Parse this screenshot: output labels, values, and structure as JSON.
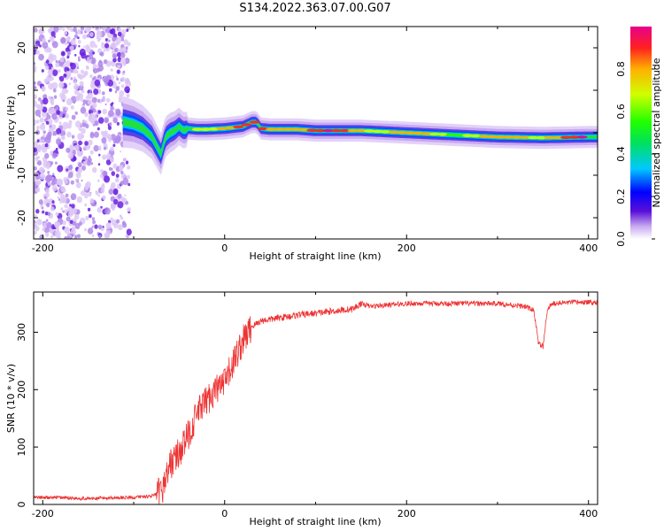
{
  "figure": {
    "title": "S134.2022.363.07.00.G07"
  },
  "chart_data": [
    {
      "type": "heatmap",
      "xlabel": "Height of straight line (km)",
      "ylabel": "Frequency (Hz)",
      "xlim": [
        -210,
        410
      ],
      "ylim": [
        -25,
        25
      ],
      "xticks": [
        "-200",
        "0",
        "200",
        "400"
      ],
      "yticks": [
        "-20",
        "-10",
        "0",
        "10",
        "20"
      ],
      "grid": false,
      "colorbar": {
        "label": "Normalized spectral amplitude",
        "range": [
          0,
          1
        ],
        "ticks": [
          "0.0",
          "0.2",
          "0.4",
          "0.6",
          "0.8"
        ],
        "colors": [
          "#ffffff",
          "#c8a8f0",
          "#5a10d8",
          "#0000ff",
          "#00c8ff",
          "#00e060",
          "#20ff00",
          "#d0ff00",
          "#ffb000",
          "#ff2020",
          "#e8008c"
        ]
      },
      "noise_region_x": [
        -210,
        -105
      ],
      "signal_trace": {
        "x": [
          -110,
          -100,
          -90,
          -80,
          -75,
          -70,
          -65,
          -60,
          -55,
          -50,
          -45,
          -40,
          -30,
          -20,
          0,
          20,
          30,
          35,
          40,
          50,
          60,
          80,
          100,
          150,
          200,
          250,
          300,
          350,
          400
        ],
        "frequency_hz": [
          2.5,
          2.0,
          1.0,
          -1.0,
          -3.0,
          -5.0,
          -1.0,
          0.0,
          0.5,
          1.5,
          0.5,
          1.0,
          0.8,
          0.8,
          1.0,
          1.5,
          2.5,
          2.5,
          1.0,
          0.8,
          0.8,
          0.8,
          0.5,
          0.5,
          0.0,
          -0.5,
          -1.0,
          -1.2,
          -1.0
        ]
      }
    },
    {
      "type": "line",
      "xlabel": "Height of straight line (km)",
      "ylabel": "SNR (10 * v/v)",
      "xlim": [
        -210,
        410
      ],
      "ylim": [
        0,
        370
      ],
      "xticks": [
        "-200",
        "0",
        "200",
        "400"
      ],
      "yticks": [
        "0",
        "100",
        "200",
        "300"
      ],
      "grid": false,
      "series": [
        {
          "color": "#ee3333",
          "x": [
            -210,
            -180,
            -150,
            -120,
            -100,
            -80,
            -70,
            -60,
            -50,
            -40,
            -30,
            -20,
            -10,
            0,
            10,
            20,
            30,
            40,
            60,
            80,
            100,
            120,
            140,
            150,
            160,
            200,
            250,
            300,
            330,
            340,
            345,
            350,
            355,
            360,
            380,
            410
          ],
          "y": [
            12,
            12,
            10,
            12,
            12,
            15,
            20,
            70,
            90,
            120,
            160,
            180,
            200,
            210,
            250,
            285,
            310,
            320,
            325,
            330,
            333,
            337,
            340,
            350,
            345,
            350,
            350,
            350,
            345,
            338,
            280,
            275,
            340,
            350,
            352,
            352
          ]
        }
      ]
    }
  ]
}
